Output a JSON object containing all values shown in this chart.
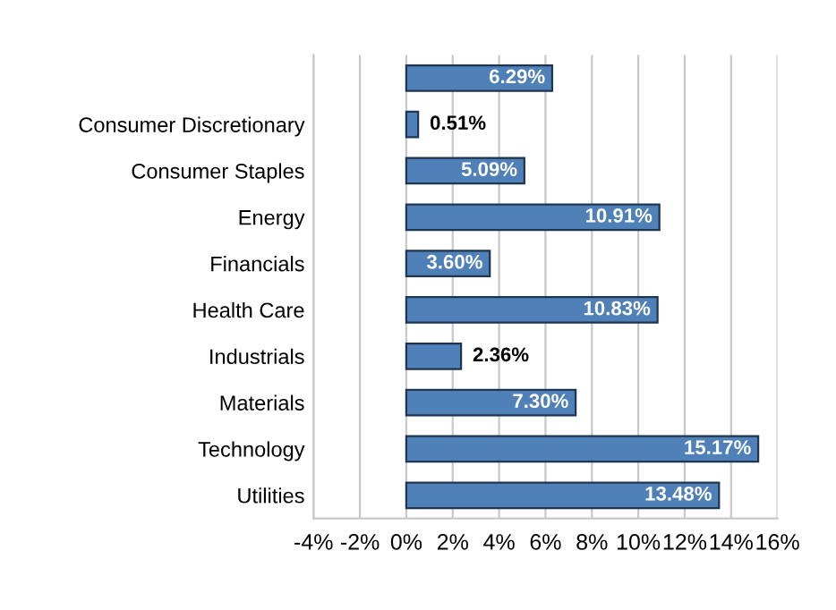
{
  "chart_data": {
    "type": "bar",
    "orientation": "horizontal",
    "categories": [
      null,
      "Consumer Discretionary",
      "Consumer Staples",
      "Energy",
      "Financials",
      "Health Care",
      "Industrials",
      "Materials",
      "Technology",
      "Utilities"
    ],
    "values": [
      6.29,
      0.51,
      5.09,
      10.91,
      3.6,
      10.83,
      2.36,
      7.3,
      15.17,
      13.48
    ],
    "value_labels": [
      "6.29%",
      "0.51%",
      "5.09%",
      "10.91%",
      "3.60%",
      "10.83%",
      "2.36%",
      "7.30%",
      "15.17%",
      "13.48%"
    ],
    "color": "#4f81b8",
    "xlim": [
      -4,
      16
    ],
    "xticks": [
      {
        "value": -4,
        "label": "-4%"
      },
      {
        "value": -2,
        "label": "-2%"
      },
      {
        "value": 0,
        "label": "0%"
      },
      {
        "value": 2,
        "label": "2%"
      },
      {
        "value": 4,
        "label": "4%"
      },
      {
        "value": 6,
        "label": "6%"
      },
      {
        "value": 8,
        "label": "8%"
      },
      {
        "value": 10,
        "label": "10%"
      },
      {
        "value": 12,
        "label": "12%"
      },
      {
        "value": 14,
        "label": "14%"
      },
      {
        "value": 16,
        "label": "16%"
      }
    ],
    "grid": "x",
    "legend": false
  }
}
